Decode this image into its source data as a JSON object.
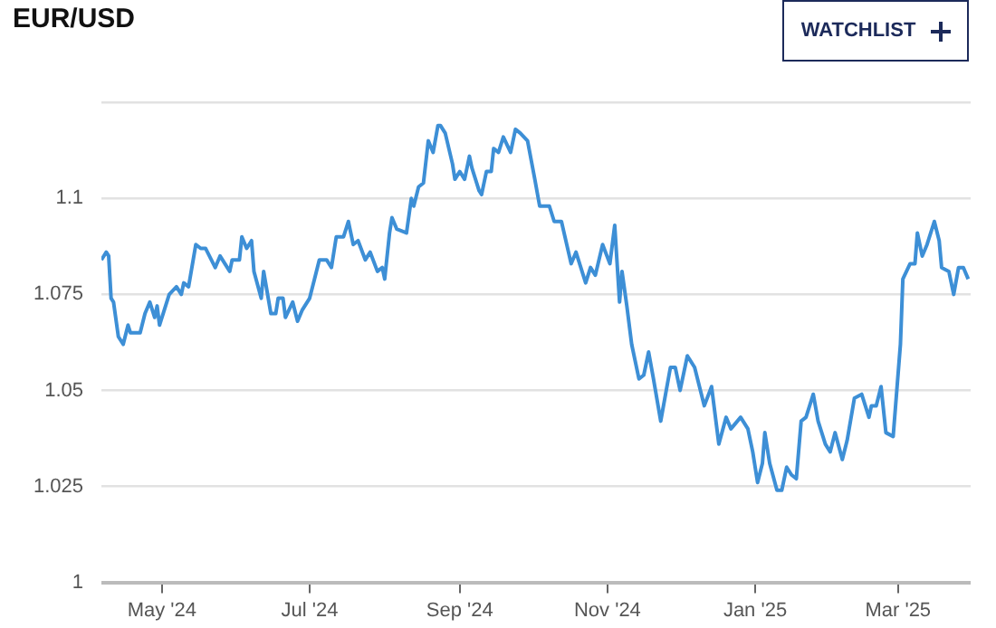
{
  "chart_data": {
    "type": "line",
    "title": "EUR/USD",
    "annotations": [
      "WATCHLIST"
    ],
    "x": [
      "2024-04-06",
      "2024-04-08",
      "2024-04-09",
      "2024-04-10",
      "2024-04-11",
      "2024-04-13",
      "2024-04-15",
      "2024-04-17",
      "2024-04-18",
      "2024-04-22",
      "2024-04-24",
      "2024-04-26",
      "2024-04-28",
      "2024-04-29",
      "2024-04-30",
      "2024-05-02",
      "2024-05-04",
      "2024-05-07",
      "2024-05-09",
      "2024-05-10",
      "2024-05-12",
      "2024-05-15",
      "2024-05-17",
      "2024-05-19",
      "2024-05-23",
      "2024-05-25",
      "2024-05-29",
      "2024-05-30",
      "2024-06-02",
      "2024-06-03",
      "2024-06-05",
      "2024-06-07",
      "2024-06-08",
      "2024-06-11",
      "2024-06-12",
      "2024-06-15",
      "2024-06-17",
      "2024-06-18",
      "2024-06-20",
      "2024-06-21",
      "2024-06-24",
      "2024-06-26",
      "2024-06-28",
      "2024-07-01",
      "2024-07-03",
      "2024-07-05",
      "2024-07-08",
      "2024-07-10",
      "2024-07-12",
      "2024-07-15",
      "2024-07-17",
      "2024-07-19",
      "2024-07-21",
      "2024-07-24",
      "2024-07-26",
      "2024-07-29",
      "2024-07-31",
      "2024-08-01",
      "2024-08-03",
      "2024-08-04",
      "2024-08-06",
      "2024-08-10",
      "2024-08-12",
      "2024-08-13",
      "2024-08-15",
      "2024-08-17",
      "2024-08-19",
      "2024-08-21",
      "2024-08-23",
      "2024-08-24",
      "2024-08-26",
      "2024-08-29",
      "2024-08-30",
      "2024-09-01",
      "2024-09-03",
      "2024-09-05",
      "2024-09-06",
      "2024-09-09",
      "2024-09-10",
      "2024-09-12",
      "2024-09-14",
      "2024-09-15",
      "2024-09-17",
      "2024-09-19",
      "2024-09-22",
      "2024-09-24",
      "2024-09-26",
      "2024-09-29",
      "2024-10-02",
      "2024-10-04",
      "2024-10-08",
      "2024-10-10",
      "2024-10-13",
      "2024-10-17",
      "2024-10-19",
      "2024-10-23",
      "2024-10-25",
      "2024-10-27",
      "2024-10-30",
      "2024-11-02",
      "2024-11-04",
      "2024-11-06",
      "2024-11-07",
      "2024-11-09",
      "2024-11-11",
      "2024-11-14",
      "2024-11-16",
      "2024-11-18",
      "2024-11-20",
      "2024-11-23",
      "2024-11-25",
      "2024-11-27",
      "2024-11-29",
      "2024-12-01",
      "2024-12-04",
      "2024-12-07",
      "2024-12-11",
      "2024-12-14",
      "2024-12-17",
      "2024-12-20",
      "2024-12-22",
      "2024-12-26",
      "2024-12-29",
      "2024-12-31",
      "2025-01-02",
      "2025-01-04",
      "2025-01-05",
      "2025-01-07",
      "2025-01-10",
      "2025-01-12",
      "2025-01-14",
      "2025-01-16",
      "2025-01-18",
      "2025-01-20",
      "2025-01-22",
      "2025-01-25",
      "2025-01-27",
      "2025-01-30",
      "2025-02-01",
      "2025-02-03",
      "2025-02-06",
      "2025-02-08",
      "2025-02-11",
      "2025-02-14",
      "2025-02-17",
      "2025-02-18",
      "2025-02-20",
      "2025-02-22",
      "2025-02-24",
      "2025-02-27",
      "2025-03-02",
      "2025-03-03",
      "2025-03-06",
      "2025-03-08",
      "2025-03-09",
      "2025-03-11",
      "2025-03-13",
      "2025-03-16",
      "2025-03-18",
      "2025-03-19",
      "2025-03-22",
      "2025-03-24",
      "2025-03-26",
      "2025-03-28",
      "2025-03-30"
    ],
    "series": [
      {
        "color": "#3d8fd6",
        "values": [
          1.084,
          1.086,
          1.085,
          1.074,
          1.073,
          1.064,
          1.062,
          1.067,
          1.065,
          1.065,
          1.07,
          1.073,
          1.069,
          1.072,
          1.067,
          1.071,
          1.075,
          1.077,
          1.075,
          1.078,
          1.077,
          1.088,
          1.087,
          1.087,
          1.082,
          1.085,
          1.081,
          1.084,
          1.084,
          1.09,
          1.087,
          1.089,
          1.081,
          1.074,
          1.081,
          1.07,
          1.07,
          1.074,
          1.074,
          1.069,
          1.073,
          1.068,
          1.071,
          1.074,
          1.079,
          1.084,
          1.084,
          1.082,
          1.09,
          1.09,
          1.094,
          1.088,
          1.089,
          1.084,
          1.086,
          1.081,
          1.082,
          1.079,
          1.091,
          1.095,
          1.092,
          1.091,
          1.1,
          1.098,
          1.103,
          1.104,
          1.115,
          1.112,
          1.119,
          1.119,
          1.117,
          1.109,
          1.105,
          1.107,
          1.105,
          1.111,
          1.108,
          1.102,
          1.101,
          1.107,
          1.107,
          1.113,
          1.112,
          1.116,
          1.112,
          1.118,
          1.117,
          1.115,
          1.105,
          1.098,
          1.098,
          1.094,
          1.094,
          1.083,
          1.086,
          1.078,
          1.082,
          1.08,
          1.088,
          1.083,
          1.093,
          1.073,
          1.081,
          1.072,
          1.062,
          1.053,
          1.054,
          1.06,
          1.053,
          1.042,
          1.049,
          1.056,
          1.056,
          1.05,
          1.059,
          1.056,
          1.046,
          1.051,
          1.036,
          1.043,
          1.04,
          1.043,
          1.04,
          1.034,
          1.026,
          1.031,
          1.039,
          1.031,
          1.024,
          1.024,
          1.03,
          1.028,
          1.027,
          1.042,
          1.043,
          1.049,
          1.042,
          1.036,
          1.034,
          1.039,
          1.032,
          1.037,
          1.048,
          1.049,
          1.043,
          1.046,
          1.046,
          1.051,
          1.039,
          1.038,
          1.062,
          1.079,
          1.083,
          1.083,
          1.091,
          1.085,
          1.088,
          1.094,
          1.089,
          1.082,
          1.081,
          1.075,
          1.082,
          1.082,
          1.079
        ]
      }
    ],
    "xlim": [
      "2024-04-06",
      "2025-03-31"
    ],
    "xticks": [
      {
        "value": "2024-05-01",
        "label": "May '24"
      },
      {
        "value": "2024-07-01",
        "label": "Jul '24"
      },
      {
        "value": "2024-09-01",
        "label": "Sep '24"
      },
      {
        "value": "2024-11-01",
        "label": "Nov '24"
      },
      {
        "value": "2025-01-01",
        "label": "Jan '25"
      },
      {
        "value": "2025-03-01",
        "label": "Mar '25"
      }
    ],
    "ylim": [
      1,
      1.125
    ],
    "yticks": [
      1,
      1.025,
      1.05,
      1.075,
      1.1,
      {
        "value": 1.125,
        "label": null
      }
    ],
    "grid": "y",
    "legend": false,
    "marker": "none",
    "line_style": "solid"
  }
}
